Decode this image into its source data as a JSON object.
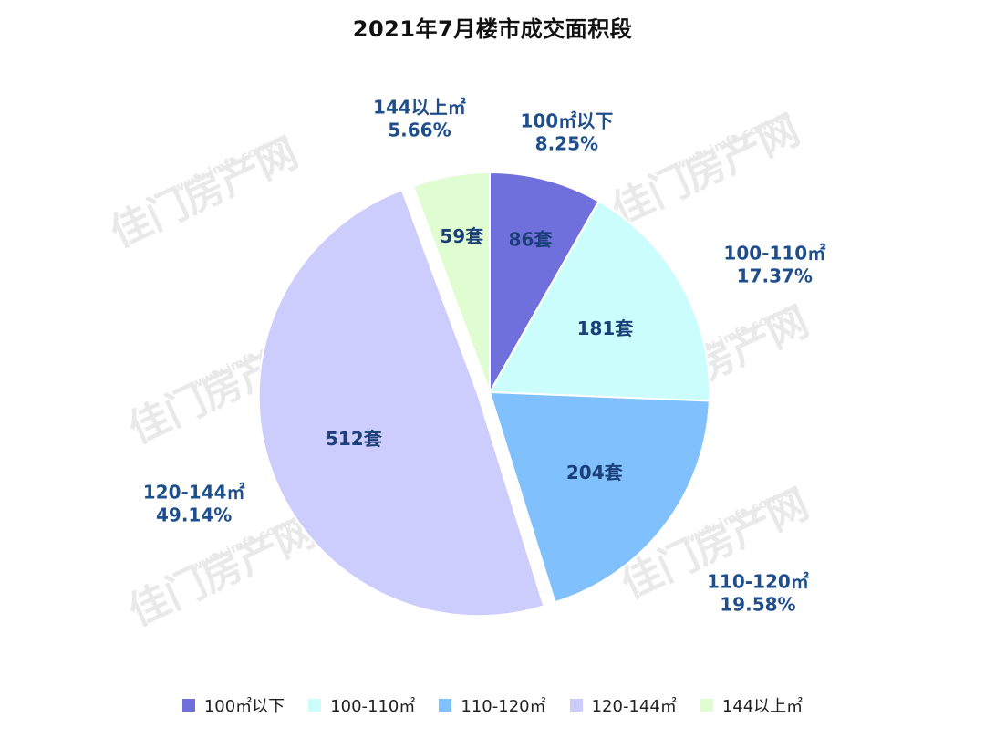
{
  "chart_data": {
    "type": "pie",
    "title": "2021年7月楼市成交面积段",
    "slices": [
      {
        "label": "100㎡以下",
        "count": 86,
        "count_label": "86套",
        "percent_label": "8.25%",
        "color": "#7070dc"
      },
      {
        "label": "100-110㎡",
        "count": 181,
        "count_label": "181套",
        "percent_label": "17.37%",
        "color": "#ccfdfd"
      },
      {
        "label": "110-120㎡",
        "count": 204,
        "count_label": "204套",
        "percent_label": "19.58%",
        "color": "#80c0fd"
      },
      {
        "label": "120-144㎡",
        "count": 512,
        "count_label": "512套",
        "percent_label": "49.14%",
        "color": "#ccccfd"
      },
      {
        "label": "144以上㎡",
        "count": 59,
        "count_label": "59套",
        "percent_label": "5.66%",
        "color": "#e0fdd2"
      }
    ],
    "exploded_slice": "120-144㎡",
    "legend_position": "bottom"
  },
  "watermark": {
    "text": "佳门房产网",
    "url": "www.jmfc.com.cn"
  }
}
